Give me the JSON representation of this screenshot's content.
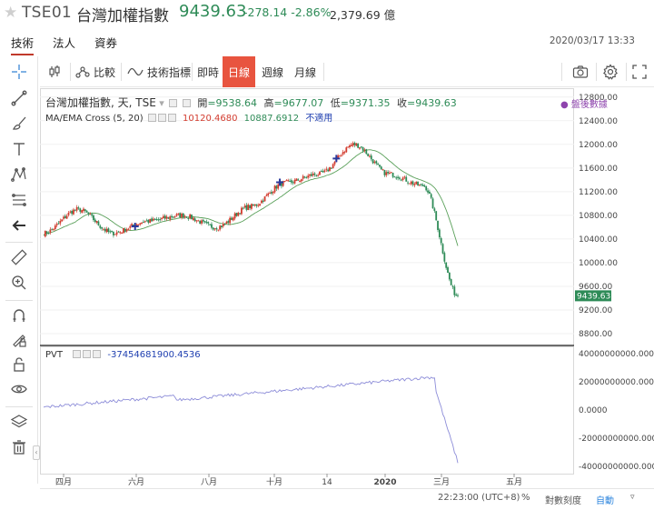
{
  "header": {
    "symbol": "TSE01",
    "name": "台灣加權指數",
    "price": "9439.63",
    "change": "-278.14 -2.86%",
    "volume": "2,379.69 億"
  },
  "tabs": [
    "技術",
    "法人",
    "資券"
  ],
  "datetime": "2020/03/17 13:33",
  "toolbar": {
    "compare": "比較",
    "indicators": "技術指標",
    "intraday": "即時",
    "daily": "日線",
    "weekly": "週線",
    "monthly": "月線"
  },
  "legend": {
    "main_title": "台灣加權指數, 天, TSE",
    "open_label": "開",
    "open": "=9538.64",
    "high_label": "高",
    "high": "=9677.07",
    "low_label": "低",
    "low": "=9371.35",
    "close_label": "收",
    "close": "=9439.63",
    "ma_title": "MA/EMA Cross (5, 20)",
    "ma_v1": "10120.4680",
    "ma_v2": "10887.6912",
    "ma_v3": "不適用",
    "pvt_title": "PVT",
    "pvt_value": "-37454681900.4536",
    "after_hours": "盤後數據"
  },
  "price_axis": [
    "12800.00",
    "12400.00",
    "12000.00",
    "11600.00",
    "11200.00",
    "10800.00",
    "10400.00",
    "10000.00",
    "9600.00",
    "9200.00",
    "8800.00"
  ],
  "price_tag": "9439.63",
  "pvt_axis": [
    "40000000000.0000",
    "20000000000.0000",
    "0.0000",
    "-20000000000.0000",
    "-40000000000.0000"
  ],
  "time_axis": [
    "四月",
    "六月",
    "八月",
    "十月",
    "14",
    "2020",
    "三月",
    "五月"
  ],
  "bottombar": {
    "time": "22:23:00 (UTC+8)",
    "percent": "%",
    "log": "對數刻度",
    "auto": "自動"
  },
  "colors": {
    "up": "#d23b2e",
    "down": "#2e8b57",
    "ma": "#5aa05a",
    "pvt": "#8c8cd8",
    "accent": "#e8543f"
  },
  "chart_data": {
    "type": "candlestick",
    "ylim": [
      8600,
      12950
    ],
    "monthly_closes": [
      {
        "month": "2019-03",
        "close": 10500
      },
      {
        "month": "2019-04",
        "close": 10900
      },
      {
        "month": "2019-05",
        "close": 10500
      },
      {
        "month": "2019-06",
        "close": 10700
      },
      {
        "month": "2019-07",
        "close": 10800
      },
      {
        "month": "2019-08",
        "close": 10600
      },
      {
        "month": "2019-09",
        "close": 10950
      },
      {
        "month": "2019-10",
        "close": 11350
      },
      {
        "month": "2019-11",
        "close": 11500
      },
      {
        "month": "2019-12",
        "close": 12000
      },
      {
        "month": "2020-01",
        "close": 11500
      },
      {
        "month": "2020-02",
        "close": 11300
      },
      {
        "month": "2020-03-17",
        "close": 9439.63
      }
    ],
    "pvt": {
      "ylim": [
        -45000000000,
        45000000000
      ],
      "last": -37454681900.4536
    }
  }
}
